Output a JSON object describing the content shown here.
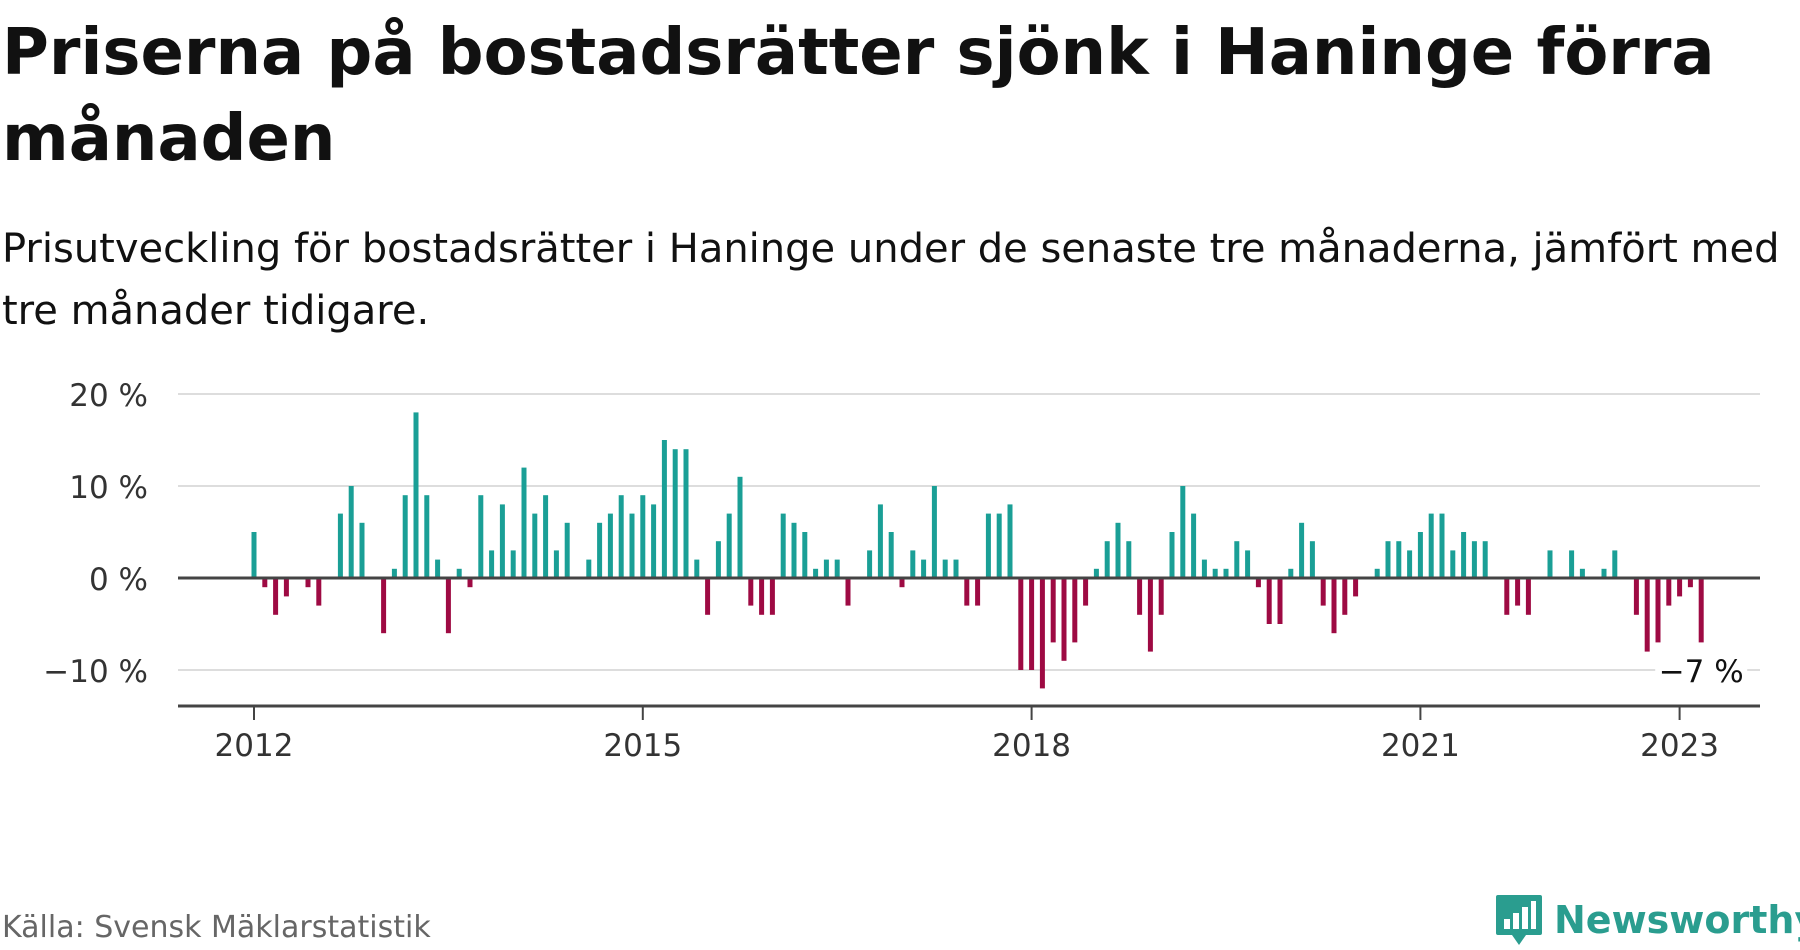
{
  "header": {
    "title": "Priserna på bostadsrätter sjönk i Haninge förra månaden",
    "subtitle": "Prisutveckling för bostadsrätter i Haninge under de senaste tre månaderna, jämfört med tre månader tidigare."
  },
  "footer": {
    "source": "Källa: Svensk Mäklarstatistik",
    "brand": "Newsworthy",
    "brand_icon": "bar-chart-icon"
  },
  "colors": {
    "positive": "#1a9f96",
    "negative": "#9e0a43",
    "grid": "#dddddd",
    "axis": "#444444",
    "brand": "#2a9d8f"
  },
  "chart_data": {
    "type": "bar",
    "title": "Priserna på bostadsrätter sjönk i Haninge förra månaden",
    "subtitle": "Prisutveckling för bostadsrätter i Haninge under de senaste tre månaderna, jämfört med tre månader tidigare.",
    "xlabel": "",
    "ylabel": "",
    "unit": "%",
    "start_month": "2012-01",
    "ylim": [
      -14,
      20
    ],
    "y_ticks": [
      20,
      10,
      0,
      -10
    ],
    "y_tick_labels": [
      "20 %",
      "10 %",
      "0 %",
      "−10 %"
    ],
    "x_ticks": [
      "2012",
      "2015",
      "2018",
      "2021",
      "2023"
    ],
    "x_tick_months": [
      "2012-01",
      "2015-01",
      "2018-01",
      "2021-01",
      "2023-01"
    ],
    "grid": true,
    "end_label": "−7 %",
    "values": [
      5,
      -1,
      -4,
      -2,
      0,
      -1,
      -3,
      0,
      7,
      10,
      6,
      0,
      -6,
      1,
      9,
      18,
      9,
      2,
      -6,
      1,
      -1,
      9,
      3,
      8,
      3,
      12,
      7,
      9,
      3,
      6,
      0,
      2,
      6,
      7,
      9,
      7,
      9,
      8,
      15,
      14,
      14,
      2,
      -4,
      4,
      7,
      11,
      -3,
      -4,
      -4,
      7,
      6,
      5,
      1,
      2,
      2,
      -3,
      0,
      3,
      8,
      5,
      -1,
      3,
      2,
      10,
      2,
      2,
      -3,
      -3,
      7,
      7,
      8,
      -10,
      -10,
      -12,
      -7,
      -9,
      -7,
      -3,
      1,
      4,
      6,
      4,
      -4,
      -8,
      -4,
      5,
      10,
      7,
      2,
      1,
      1,
      4,
      3,
      -1,
      -5,
      -5,
      1,
      6,
      4,
      -3,
      -6,
      -4,
      -2,
      0,
      1,
      4,
      4,
      3,
      5,
      7,
      7,
      3,
      5,
      4,
      4,
      0,
      -4,
      -3,
      -4,
      0,
      3,
      0,
      3,
      1,
      0,
      1,
      3,
      0,
      -4,
      -8,
      -7,
      -3,
      -2,
      -1,
      -7
    ]
  }
}
